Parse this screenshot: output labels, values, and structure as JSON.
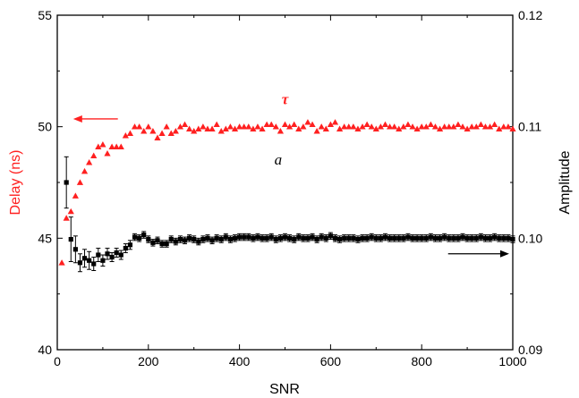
{
  "chart_data": {
    "type": "scatter",
    "xlabel": "SNR",
    "ylabel_left": "Delay (ns)",
    "ylabel_right": "Amplitude",
    "xlim": [
      0,
      1000
    ],
    "ylim_left": [
      40,
      55
    ],
    "ylim_right": [
      0.09,
      0.12
    ],
    "x_ticks": [
      "0",
      "200",
      "400",
      "600",
      "800",
      "1000"
    ],
    "y_left_ticks": [
      "40",
      "45",
      "50",
      "55"
    ],
    "y_right_ticks": [
      "0.09",
      "0.10",
      "0.11",
      "0.12"
    ],
    "grid": false,
    "colors": {
      "tau": "#ff2020",
      "a": "#000000"
    },
    "series": [
      {
        "name": "τ",
        "axis": "left",
        "marker": "triangle",
        "points": [
          [
            10,
            43.9
          ],
          [
            20,
            45.9
          ],
          [
            30,
            46.2
          ],
          [
            40,
            46.9
          ],
          [
            50,
            47.5
          ],
          [
            60,
            48.0
          ],
          [
            70,
            48.4
          ],
          [
            80,
            48.7
          ],
          [
            90,
            49.1
          ],
          [
            100,
            49.2
          ],
          [
            110,
            48.8
          ],
          [
            120,
            49.1
          ],
          [
            130,
            49.1
          ],
          [
            140,
            49.1
          ],
          [
            150,
            49.6
          ],
          [
            160,
            49.7
          ],
          [
            170,
            50.0
          ],
          [
            180,
            50.0
          ],
          [
            190,
            49.8
          ],
          [
            200,
            50.0
          ],
          [
            210,
            49.8
          ],
          [
            220,
            49.5
          ],
          [
            230,
            49.7
          ],
          [
            240,
            50.0
          ],
          [
            250,
            49.7
          ],
          [
            260,
            49.8
          ],
          [
            270,
            50.0
          ],
          [
            280,
            50.1
          ],
          [
            290,
            49.9
          ],
          [
            300,
            49.8
          ],
          [
            310,
            49.9
          ],
          [
            320,
            50.0
          ],
          [
            330,
            49.9
          ],
          [
            340,
            49.9
          ],
          [
            350,
            50.1
          ],
          [
            360,
            49.8
          ],
          [
            370,
            49.9
          ],
          [
            380,
            50.0
          ],
          [
            390,
            49.9
          ],
          [
            400,
            50.0
          ],
          [
            410,
            50.0
          ],
          [
            420,
            50.0
          ],
          [
            430,
            49.9
          ],
          [
            440,
            50.0
          ],
          [
            450,
            49.9
          ],
          [
            460,
            50.1
          ],
          [
            470,
            50.1
          ],
          [
            480,
            50.0
          ],
          [
            490,
            49.8
          ],
          [
            500,
            50.1
          ],
          [
            510,
            50.0
          ],
          [
            520,
            50.1
          ],
          [
            530,
            49.9
          ],
          [
            540,
            50.0
          ],
          [
            550,
            50.2
          ],
          [
            560,
            50.1
          ],
          [
            570,
            49.8
          ],
          [
            580,
            50.0
          ],
          [
            590,
            49.9
          ],
          [
            600,
            50.1
          ],
          [
            610,
            50.2
          ],
          [
            620,
            49.9
          ],
          [
            630,
            50.0
          ],
          [
            640,
            50.0
          ],
          [
            650,
            50.0
          ],
          [
            660,
            49.9
          ],
          [
            670,
            50.0
          ],
          [
            680,
            50.1
          ],
          [
            690,
            50.0
          ],
          [
            700,
            49.9
          ],
          [
            710,
            50.0
          ],
          [
            720,
            50.1
          ],
          [
            730,
            50.0
          ],
          [
            740,
            50.0
          ],
          [
            750,
            49.9
          ],
          [
            760,
            50.0
          ],
          [
            770,
            50.1
          ],
          [
            780,
            50.0
          ],
          [
            790,
            49.9
          ],
          [
            800,
            50.0
          ],
          [
            810,
            50.0
          ],
          [
            820,
            50.1
          ],
          [
            830,
            50.0
          ],
          [
            840,
            49.9
          ],
          [
            850,
            50.0
          ],
          [
            860,
            50.0
          ],
          [
            870,
            50.0
          ],
          [
            880,
            50.1
          ],
          [
            890,
            50.0
          ],
          [
            900,
            49.9
          ],
          [
            910,
            50.0
          ],
          [
            920,
            50.0
          ],
          [
            930,
            50.1
          ],
          [
            940,
            50.0
          ],
          [
            950,
            50.0
          ],
          [
            960,
            50.1
          ],
          [
            970,
            49.9
          ],
          [
            980,
            50.0
          ],
          [
            990,
            50.0
          ],
          [
            1000,
            49.9
          ]
        ]
      },
      {
        "name": "a",
        "axis": "right",
        "marker": "square",
        "error_bars": true,
        "points": [
          [
            20,
            0.105,
            0.0023
          ],
          [
            30,
            0.0999,
            0.002
          ],
          [
            40,
            0.099,
            0.0012
          ],
          [
            50,
            0.0978,
            0.0008
          ],
          [
            60,
            0.0982,
            0.0008
          ],
          [
            70,
            0.098,
            0.0008
          ],
          [
            80,
            0.0977,
            0.0006
          ],
          [
            90,
            0.0985,
            0.0006
          ],
          [
            100,
            0.098,
            0.0005
          ],
          [
            110,
            0.0986,
            0.0005
          ],
          [
            120,
            0.0983,
            0.0004
          ],
          [
            130,
            0.0987,
            0.0004
          ],
          [
            140,
            0.0985,
            0.0004
          ],
          [
            150,
            0.0991,
            0.0004
          ],
          [
            160,
            0.0994,
            0.0004
          ],
          [
            170,
            0.1001,
            0.0003
          ],
          [
            180,
            0.1,
            0.0003
          ],
          [
            190,
            0.1003,
            0.0003
          ],
          [
            200,
            0.0999,
            0.0003
          ],
          [
            210,
            0.0996,
            0.0003
          ],
          [
            220,
            0.0998,
            0.0003
          ],
          [
            230,
            0.0995,
            0.0003
          ],
          [
            240,
            0.0995,
            0.0003
          ],
          [
            250,
            0.0999,
            0.0003
          ],
          [
            260,
            0.0997,
            0.0003
          ],
          [
            270,
            0.0999,
            0.0003
          ],
          [
            280,
            0.0998,
            0.0003
          ],
          [
            290,
            0.1,
            0.0003
          ],
          [
            300,
            0.0999,
            0.0003
          ],
          [
            310,
            0.0997,
            0.0003
          ],
          [
            320,
            0.0999,
            0.0003
          ],
          [
            330,
            0.1,
            0.0003
          ],
          [
            340,
            0.0998,
            0.0003
          ],
          [
            350,
            0.1,
            0.0003
          ],
          [
            360,
            0.0999,
            0.0003
          ],
          [
            370,
            0.1001,
            0.0003
          ],
          [
            380,
            0.0999,
            0.0003
          ],
          [
            390,
            0.1,
            0.0003
          ],
          [
            400,
            0.1001,
            0.0003
          ],
          [
            410,
            0.1001,
            0.0003
          ],
          [
            420,
            0.1001,
            0.0003
          ],
          [
            430,
            0.1,
            0.0003
          ],
          [
            440,
            0.1001,
            0.0003
          ],
          [
            450,
            0.1,
            0.0003
          ],
          [
            460,
            0.1,
            0.0003
          ],
          [
            470,
            0.1001,
            0.0003
          ],
          [
            480,
            0.0999,
            0.0003
          ],
          [
            490,
            0.1,
            0.0003
          ],
          [
            500,
            0.1001,
            0.0003
          ],
          [
            510,
            0.1,
            0.0003
          ],
          [
            520,
            0.0999,
            0.0003
          ],
          [
            530,
            0.1001,
            0.0003
          ],
          [
            540,
            0.1,
            0.0003
          ],
          [
            550,
            0.1,
            0.0003
          ],
          [
            560,
            0.1001,
            0.0003
          ],
          [
            570,
            0.0999,
            0.0003
          ],
          [
            580,
            0.1001,
            0.0003
          ],
          [
            590,
            0.1,
            0.0003
          ],
          [
            600,
            0.1002,
            0.0003
          ],
          [
            610,
            0.1,
            0.0003
          ],
          [
            620,
            0.0999,
            0.0003
          ],
          [
            630,
            0.1,
            0.0003
          ],
          [
            640,
            0.1,
            0.0003
          ],
          [
            650,
            0.1,
            0.0003
          ],
          [
            660,
            0.0999,
            0.0003
          ],
          [
            670,
            0.1,
            0.0003
          ],
          [
            680,
            0.1,
            0.0003
          ],
          [
            690,
            0.1001,
            0.0003
          ],
          [
            700,
            0.1,
            0.0003
          ],
          [
            710,
            0.1,
            0.0003
          ],
          [
            720,
            0.1001,
            0.0003
          ],
          [
            730,
            0.1,
            0.0003
          ],
          [
            740,
            0.1,
            0.0003
          ],
          [
            750,
            0.1,
            0.0003
          ],
          [
            760,
            0.1,
            0.0003
          ],
          [
            770,
            0.1001,
            0.0003
          ],
          [
            780,
            0.1,
            0.0003
          ],
          [
            790,
            0.1,
            0.0003
          ],
          [
            800,
            0.1,
            0.0003
          ],
          [
            810,
            0.1,
            0.0003
          ],
          [
            820,
            0.1001,
            0.0003
          ],
          [
            830,
            0.1,
            0.0003
          ],
          [
            840,
            0.1,
            0.0003
          ],
          [
            850,
            0.1001,
            0.0003
          ],
          [
            860,
            0.1,
            0.0003
          ],
          [
            870,
            0.1,
            0.0003
          ],
          [
            880,
            0.1,
            0.0003
          ],
          [
            890,
            0.1001,
            0.0003
          ],
          [
            900,
            0.1,
            0.0003
          ],
          [
            910,
            0.1,
            0.0003
          ],
          [
            920,
            0.1,
            0.0003
          ],
          [
            930,
            0.1001,
            0.0003
          ],
          [
            940,
            0.1,
            0.0003
          ],
          [
            950,
            0.1,
            0.0003
          ],
          [
            960,
            0.1001,
            0.0003
          ],
          [
            970,
            0.1,
            0.0003
          ],
          [
            980,
            0.1,
            0.0003
          ],
          [
            990,
            0.1,
            0.0003
          ],
          [
            1000,
            0.0999,
            0.0003
          ]
        ]
      }
    ],
    "annotations": [
      {
        "text": "τ",
        "series": "τ",
        "x": 500,
        "y": 51.0,
        "axis": "left"
      },
      {
        "text": "a",
        "series": "a",
        "x": 485,
        "y": 0.1066,
        "axis": "right"
      }
    ],
    "arrows": [
      {
        "series": "τ",
        "direction": "left",
        "axis": "left",
        "x_from": 133,
        "x_to": 35,
        "y": 50.35
      },
      {
        "series": "a",
        "direction": "right",
        "axis": "right",
        "x_from": 858,
        "x_to": 992,
        "y": 0.0986
      }
    ]
  }
}
